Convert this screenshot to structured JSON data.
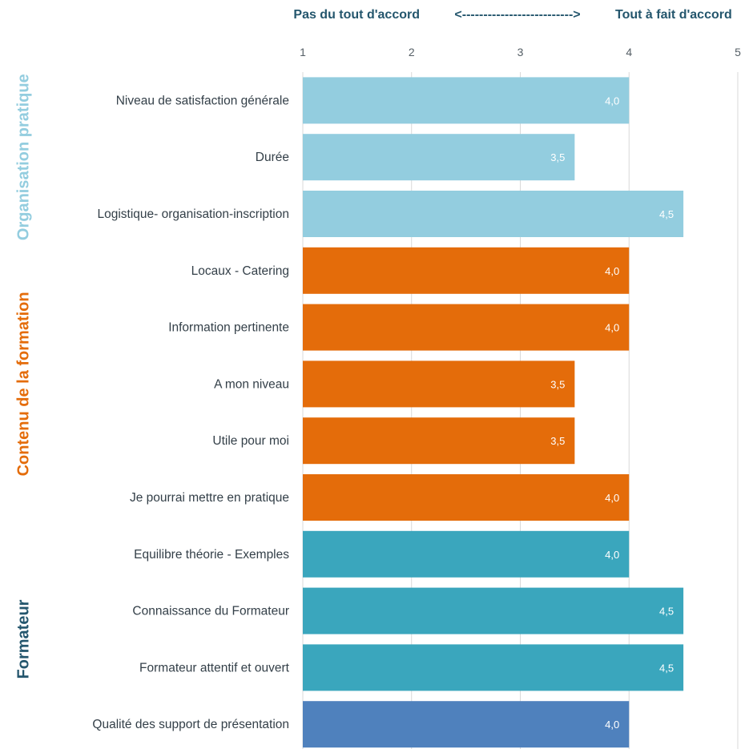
{
  "chart_data": {
    "type": "bar",
    "orientation": "horizontal",
    "scale": {
      "left_label": "Pas du tout d'accord",
      "arrow": "<-------------------------->",
      "right_label": "Tout à fait d'accord"
    },
    "xlim": [
      1,
      5
    ],
    "ticks": [
      "1",
      "2",
      "3",
      "4",
      "5"
    ],
    "grid": true,
    "groups": [
      {
        "name": "Organisation pratique",
        "color": "#93cddf",
        "start": 0,
        "end": 2
      },
      {
        "name": "Contenu de la formation",
        "color": "#e46c0a",
        "start": 3,
        "end": 7
      },
      {
        "name": "Formateur",
        "color": "#24566d",
        "start": 8,
        "end": 11
      }
    ],
    "categories": [
      "Niveau de satisfaction générale",
      "Durée",
      "Logistique- organisation-inscription",
      "Locaux - Catering",
      "Information pertinente",
      "A mon niveau",
      "Utile pour moi",
      "Je pourrai mettre en pratique",
      "Equilibre théorie - Exemples",
      "Connaissance du Formateur",
      "Formateur attentif et ouvert",
      "Qualité des support de présentation"
    ],
    "values": [
      4.0,
      3.5,
      4.5,
      4.0,
      4.0,
      3.5,
      3.5,
      4.0,
      4.0,
      4.5,
      4.5,
      4.0
    ],
    "data_labels": [
      "4,0",
      "3,5",
      "4,5",
      "4,0",
      "4,0",
      "3,5",
      "3,5",
      "4,0",
      "4,0",
      "4,5",
      "4,5",
      "4,0"
    ],
    "bar_colors": [
      "#93cddf",
      "#93cddf",
      "#93cddf",
      "#e46c0a",
      "#e46c0a",
      "#e46c0a",
      "#e46c0a",
      "#e46c0a",
      "#3aa6bd",
      "#3aa6bd",
      "#3aa6bd",
      "#4f81bd"
    ]
  }
}
